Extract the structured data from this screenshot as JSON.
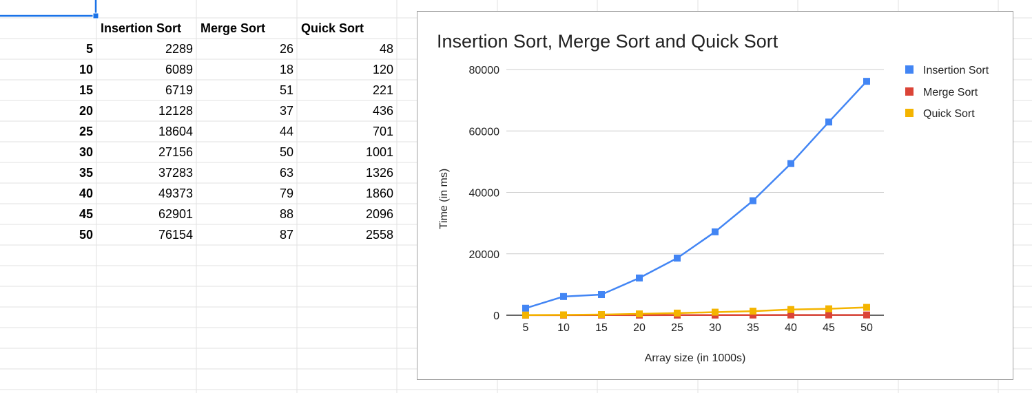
{
  "sheet": {
    "headers": [
      "Insertion Sort",
      "Merge Sort",
      "Quick Sort"
    ],
    "rows": [
      {
        "label": "5",
        "values": [
          "2289",
          "26",
          "48"
        ]
      },
      {
        "label": "10",
        "values": [
          "6089",
          "18",
          "120"
        ]
      },
      {
        "label": "15",
        "values": [
          "6719",
          "51",
          "221"
        ]
      },
      {
        "label": "20",
        "values": [
          "12128",
          "37",
          "436"
        ]
      },
      {
        "label": "25",
        "values": [
          "18604",
          "44",
          "701"
        ]
      },
      {
        "label": "30",
        "values": [
          "27156",
          "50",
          "1001"
        ]
      },
      {
        "label": "35",
        "values": [
          "37283",
          "63",
          "1326"
        ]
      },
      {
        "label": "40",
        "values": [
          "49373",
          "79",
          "1860"
        ]
      },
      {
        "label": "45",
        "values": [
          "62901",
          "88",
          "2096"
        ]
      },
      {
        "label": "50",
        "values": [
          "76154",
          "87",
          "2558"
        ]
      }
    ],
    "grid_color": "#e2e2e2",
    "selection_color": "#1a73e8"
  },
  "chart_data": {
    "type": "line",
    "title": "Insertion Sort, Merge Sort and Quick Sort",
    "xlabel": "Array size (in 1000s)",
    "ylabel": "Time (in ms)",
    "categories": [
      "5",
      "10",
      "15",
      "20",
      "25",
      "30",
      "35",
      "40",
      "45",
      "50"
    ],
    "ylim": [
      0,
      80000
    ],
    "yticks": [
      "0",
      "20000",
      "40000",
      "60000",
      "80000"
    ],
    "grid": true,
    "legend_position": "right",
    "series": [
      {
        "name": "Insertion Sort",
        "color": "#4285f4",
        "values": [
          2289,
          6089,
          6719,
          12128,
          18604,
          27156,
          37283,
          49373,
          62901,
          76154
        ]
      },
      {
        "name": "Merge Sort",
        "color": "#db4437",
        "values": [
          26,
          18,
          51,
          37,
          44,
          50,
          63,
          79,
          88,
          87
        ]
      },
      {
        "name": "Quick Sort",
        "color": "#f4b400",
        "values": [
          48,
          120,
          221,
          436,
          701,
          1001,
          1326,
          1860,
          2096,
          2558
        ]
      }
    ]
  }
}
